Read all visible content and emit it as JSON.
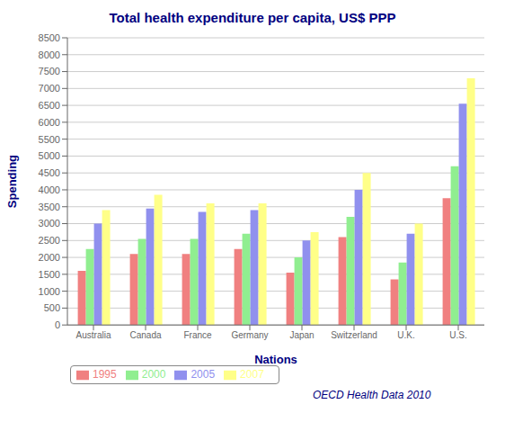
{
  "chart_data": {
    "type": "bar",
    "title": "Total health expenditure per capita, US$ PPP",
    "xlabel": "Nations",
    "ylabel": "Spending",
    "annotation": "OECD Health Data 2010",
    "categories": [
      "Australia",
      "Canada",
      "France",
      "Germany",
      "Japan",
      "Switzerland",
      "U.K.",
      "U.S."
    ],
    "series": [
      {
        "name": "1995",
        "color": "#F08080",
        "values": [
          1600,
          2100,
          2100,
          2250,
          1550,
          2600,
          1350,
          3750
        ]
      },
      {
        "name": "2000",
        "color": "#90EE90",
        "values": [
          2250,
          2550,
          2550,
          2700,
          2000,
          3200,
          1850,
          4700
        ]
      },
      {
        "name": "2005",
        "color": "#9090EE",
        "values": [
          3000,
          3450,
          3350,
          3400,
          2500,
          4000,
          2700,
          6550
        ]
      },
      {
        "name": "2007",
        "color": "#FFFF88",
        "values": [
          3400,
          3850,
          3600,
          3600,
          2750,
          4500,
          3000,
          7300
        ]
      }
    ],
    "ylim": [
      0,
      8500
    ],
    "yticks": [
      0,
      500,
      1000,
      1500,
      2000,
      2500,
      3000,
      3500,
      4000,
      4500,
      5000,
      5500,
      6000,
      6500,
      7000,
      7500,
      8000,
      8500
    ],
    "grid": true,
    "legend": "bottom"
  }
}
